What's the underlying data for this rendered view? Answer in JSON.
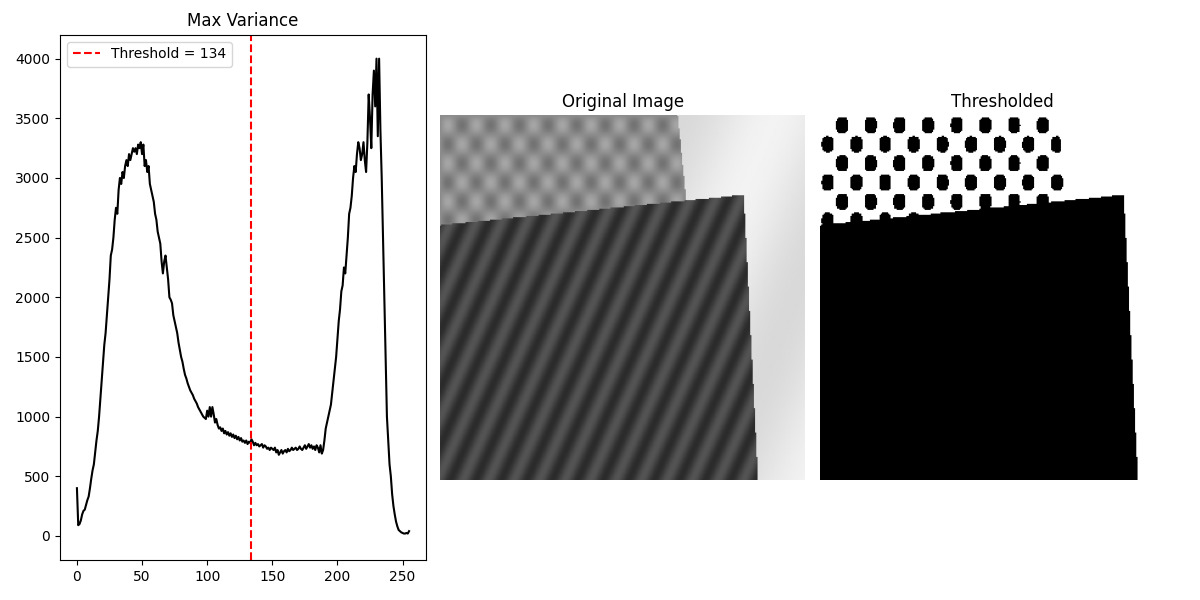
{
  "chart_data": {
    "type": "line",
    "title": "Max Variance",
    "x": [
      0,
      1,
      2,
      3,
      4,
      5,
      6,
      7,
      8,
      9,
      10,
      11,
      12,
      13,
      14,
      15,
      16,
      17,
      18,
      19,
      20,
      21,
      22,
      23,
      24,
      25,
      26,
      27,
      28,
      29,
      30,
      31,
      32,
      33,
      34,
      35,
      36,
      37,
      38,
      39,
      40,
      41,
      42,
      43,
      44,
      45,
      46,
      47,
      48,
      49,
      50,
      51,
      52,
      53,
      54,
      55,
      56,
      57,
      58,
      59,
      60,
      61,
      62,
      63,
      64,
      65,
      66,
      67,
      68,
      69,
      70,
      71,
      72,
      73,
      74,
      75,
      76,
      77,
      78,
      79,
      80,
      81,
      82,
      83,
      84,
      85,
      86,
      87,
      88,
      89,
      90,
      91,
      92,
      93,
      94,
      95,
      96,
      97,
      98,
      99,
      100,
      101,
      102,
      103,
      104,
      105,
      106,
      107,
      108,
      109,
      110,
      111,
      112,
      113,
      114,
      115,
      116,
      117,
      118,
      119,
      120,
      121,
      122,
      123,
      124,
      125,
      126,
      127,
      128,
      129,
      130,
      131,
      132,
      133,
      134,
      135,
      136,
      137,
      138,
      139,
      140,
      141,
      142,
      143,
      144,
      145,
      146,
      147,
      148,
      149,
      150,
      151,
      152,
      153,
      154,
      155,
      156,
      157,
      158,
      159,
      160,
      161,
      162,
      163,
      164,
      165,
      166,
      167,
      168,
      169,
      170,
      171,
      172,
      173,
      174,
      175,
      176,
      177,
      178,
      179,
      180,
      181,
      182,
      183,
      184,
      185,
      186,
      187,
      188,
      189,
      190,
      191,
      192,
      193,
      194,
      195,
      196,
      197,
      198,
      199,
      200,
      201,
      202,
      203,
      204,
      205,
      206,
      207,
      208,
      209,
      210,
      211,
      212,
      213,
      214,
      215,
      216,
      217,
      218,
      219,
      220,
      221,
      222,
      223,
      224,
      225,
      226,
      227,
      228,
      229,
      230,
      231,
      232,
      233,
      234,
      235,
      236,
      237,
      238,
      239,
      240,
      241,
      242,
      243,
      244,
      245,
      246,
      247,
      248,
      249,
      250,
      251,
      252,
      253,
      254,
      255
    ],
    "values": [
      400,
      90,
      100,
      130,
      180,
      210,
      220,
      260,
      300,
      330,
      400,
      480,
      550,
      600,
      700,
      800,
      880,
      1000,
      1150,
      1300,
      1450,
      1600,
      1700,
      1850,
      2000,
      2150,
      2350,
      2400,
      2500,
      2650,
      2750,
      2700,
      2900,
      3000,
      2950,
      3050,
      3000,
      3100,
      3150,
      3100,
      3200,
      3150,
      3200,
      3250,
      3220,
      3250,
      3200,
      3280,
      3250,
      3300,
      3200,
      3280,
      3100,
      3150,
      3050,
      3100,
      2950,
      2900,
      2850,
      2800,
      2700,
      2650,
      2550,
      2500,
      2450,
      2300,
      2200,
      2300,
      2350,
      2250,
      2150,
      2000,
      1980,
      1950,
      1850,
      1800,
      1750,
      1700,
      1620,
      1560,
      1500,
      1460,
      1400,
      1350,
      1320,
      1280,
      1250,
      1220,
      1200,
      1180,
      1150,
      1130,
      1110,
      1080,
      1060,
      1040,
      1020,
      1000,
      990,
      980,
      1050,
      1000,
      1080,
      1000,
      1080,
      1020,
      950,
      980,
      930,
      900,
      910,
      880,
      900,
      860,
      880,
      850,
      870,
      840,
      860,
      830,
      850,
      820,
      840,
      810,
      830,
      800,
      820,
      790,
      800,
      780,
      800,
      770,
      790,
      780,
      810,
      790,
      760,
      780,
      760,
      770,
      750,
      760,
      770,
      740,
      760,
      750,
      730,
      740,
      720,
      740,
      730,
      720,
      740,
      700,
      720,
      680,
      700,
      720,
      690,
      710,
      720,
      700,
      730,
      710,
      720,
      740,
      720,
      730,
      740,
      720,
      730,
      750,
      730,
      720,
      740,
      760,
      730,
      750,
      770,
      740,
      760,
      730,
      750,
      720,
      760,
      740,
      700,
      760,
      690,
      720,
      800,
      900,
      950,
      1000,
      1050,
      1100,
      1200,
      1300,
      1400,
      1500,
      1650,
      1800,
      1900,
      2050,
      2100,
      2250,
      2200,
      2350,
      2500,
      2700,
      2750,
      2850,
      3000,
      3100,
      3050,
      3200,
      3300,
      3250,
      3150,
      3200,
      3300,
      3150,
      3050,
      3300,
      3700,
      3500,
      3250,
      3700,
      3900,
      3600,
      4000,
      3350,
      4000,
      3400,
      3000,
      2500,
      2000,
      1500,
      1000,
      800,
      600,
      500,
      350,
      250,
      180,
      120,
      80,
      50,
      40,
      30,
      25,
      20,
      20,
      25,
      20,
      40
    ],
    "color": "#000000",
    "threshold": {
      "x": 134,
      "label": "Threshold = 134",
      "color": "#ff0000",
      "line_style": "dashed"
    },
    "legend": "upper left",
    "xlim": [
      -13,
      268
    ],
    "xticks": [
      0,
      50,
      100,
      150,
      200,
      250
    ],
    "ylim": [
      -200,
      4200
    ],
    "yticks": [
      0,
      500,
      1000,
      1500,
      2000,
      2500,
      3000,
      3500,
      4000
    ],
    "grid": false
  },
  "images": [
    {
      "title": "Original Image"
    },
    {
      "title": "Thresholded"
    }
  ]
}
